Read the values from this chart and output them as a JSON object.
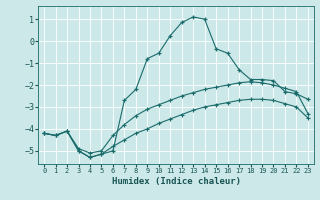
{
  "xlabel": "Humidex (Indice chaleur)",
  "background_color": "#cce8e8",
  "grid_color": "#b0d4d4",
  "line_color": "#1a6b6b",
  "xlim": [
    -0.5,
    23.5
  ],
  "ylim": [
    -5.6,
    1.6
  ],
  "yticks": [
    1,
    0,
    -1,
    -2,
    -3,
    -4,
    -5
  ],
  "xticks": [
    0,
    1,
    2,
    3,
    4,
    5,
    6,
    7,
    8,
    9,
    10,
    11,
    12,
    13,
    14,
    15,
    16,
    17,
    18,
    19,
    20,
    21,
    22,
    23
  ],
  "line1_x": [
    0,
    1,
    2,
    3,
    4,
    5,
    6,
    7,
    8,
    9,
    10,
    11,
    12,
    13,
    14,
    15,
    16,
    17,
    18,
    19,
    20,
    21,
    22,
    23
  ],
  "line1_y": [
    -4.2,
    -4.3,
    -4.1,
    -5.0,
    -5.3,
    -5.15,
    -5.0,
    -2.7,
    -2.2,
    -0.8,
    -0.55,
    0.25,
    0.85,
    1.1,
    1.0,
    -0.35,
    -0.55,
    -1.3,
    -1.75,
    -1.75,
    -1.8,
    -2.3,
    -2.4,
    -2.65
  ],
  "line2_x": [
    0,
    1,
    2,
    3,
    4,
    5,
    6,
    7,
    8,
    9,
    10,
    11,
    12,
    13,
    14,
    15,
    16,
    17,
    18,
    19,
    20,
    21,
    22,
    23
  ],
  "line2_y": [
    -4.2,
    -4.3,
    -4.1,
    -4.9,
    -5.1,
    -5.0,
    -4.3,
    -3.8,
    -3.4,
    -3.1,
    -2.9,
    -2.7,
    -2.5,
    -2.35,
    -2.2,
    -2.1,
    -2.0,
    -1.9,
    -1.85,
    -1.9,
    -2.0,
    -2.15,
    -2.3,
    -3.3
  ],
  "line3_x": [
    0,
    1,
    2,
    3,
    4,
    5,
    6,
    7,
    8,
    9,
    10,
    11,
    12,
    13,
    14,
    15,
    16,
    17,
    18,
    19,
    20,
    21,
    22,
    23
  ],
  "line3_y": [
    -4.2,
    -4.3,
    -4.1,
    -5.0,
    -5.3,
    -5.15,
    -4.8,
    -4.5,
    -4.2,
    -4.0,
    -3.75,
    -3.55,
    -3.35,
    -3.15,
    -3.0,
    -2.9,
    -2.8,
    -2.7,
    -2.65,
    -2.65,
    -2.7,
    -2.85,
    -3.0,
    -3.5
  ]
}
